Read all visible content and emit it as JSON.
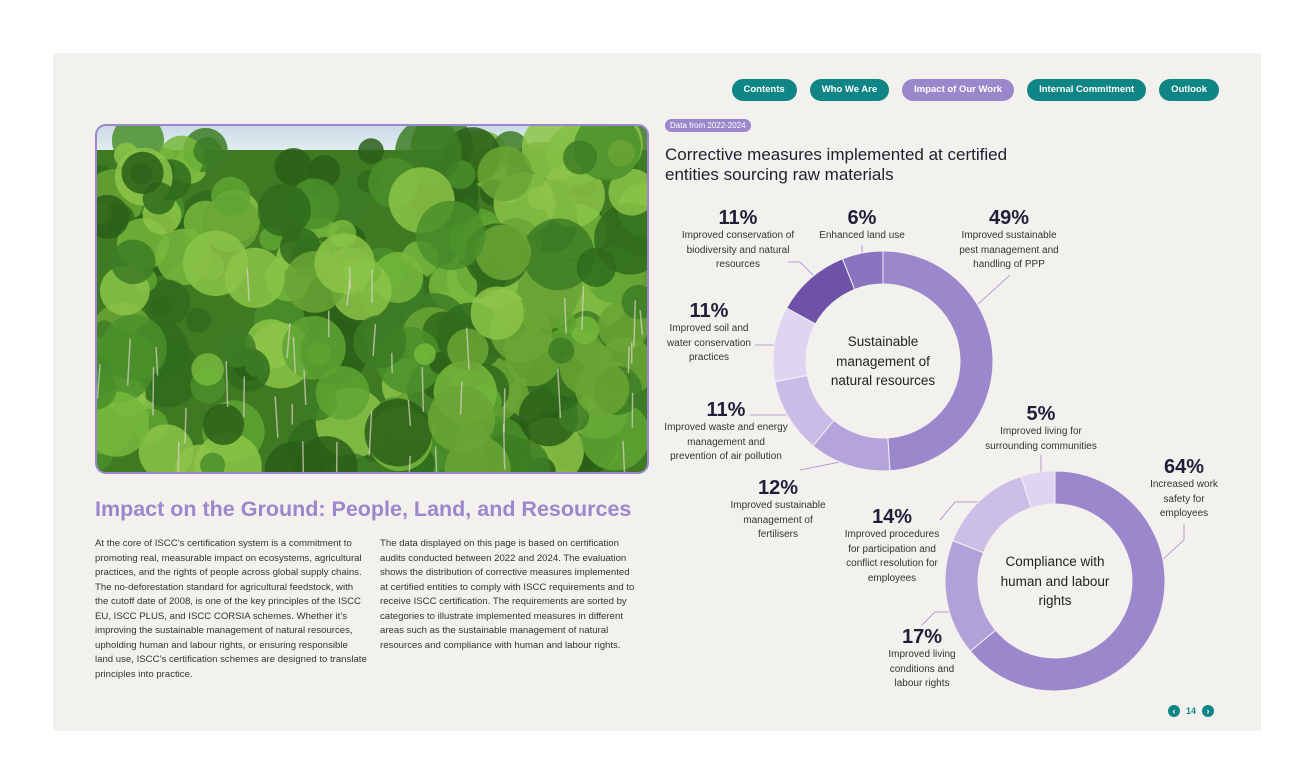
{
  "nav": [
    "Contents",
    "Who We Are",
    "Impact of Our Work",
    "Internal Commitment",
    "Outlook"
  ],
  "badge": "Data from 2022-2024",
  "title": "Corrective measures implemented at certified entities sourcing raw materials",
  "heading": "Impact on the Ground: People, Land, and Resources",
  "paragraphs": [
    "At the core of ISCC’s certification system is a commitment to promoting real, measurable impact on ecosystems, agricultural practices, and the rights of people across global supply chains. The no-deforestation standard for agricultural feedstock, with the cutoff date of 2008, is one of the key principles of the ISCC EU, ISCC PLUS, and ISCC CORSIA schemes. Whether it’s improving the sustainable management of natural resources, upholding human and labour rights, or ensuring responsible land use, ISCC’s certification schemes are designed to translate principles into practice.",
    "The data displayed on this page is based on certification audits conducted between 2022 and 2024. The evaluation shows the distribution of corrective measures implemented at certified entities to comply with ISCC requirements and to receive ISCC certification. The requirements are sorted by categories to illustrate implemented measures in different areas such as the sustainable management of natural resources and compliance with human and labour rights."
  ],
  "chart_data": [
    {
      "type": "pie",
      "center_label": "Sustainable management of natural resources",
      "categories": [
        "Improved sustainable pest management and handling of PPP",
        "Improved sustainable management of fertilisers",
        "Improved waste and energy management and prevention of air pollution",
        "Improved soil and water conservation practices",
        "Improved conservation of biodiversity and natural resources",
        "Enhanced land use"
      ],
      "values": [
        49,
        12,
        11,
        11,
        11,
        6
      ],
      "value_labels": [
        "49%",
        "12%",
        "11%",
        "11%",
        "11%",
        "6%"
      ],
      "colors": [
        "#9b87cc",
        "#b4a4db",
        "#c9bde8",
        "#ddd5f1",
        "#6e52a7",
        "#8a73c0"
      ]
    },
    {
      "type": "pie",
      "center_label": "Compliance with human and labour rights",
      "categories": [
        "Increased work safety for employees",
        "Improved living conditions and labour rights",
        "Improved procedures for participation and conflict resolution for employees",
        "Improved living for surrounding communities"
      ],
      "values": [
        64,
        17,
        14,
        5
      ],
      "value_labels": [
        "64%",
        "17%",
        "14%",
        "5%"
      ],
      "colors": [
        "#9b87cc",
        "#b1a1d9",
        "#cbbfe8",
        "#ddd5f1"
      ]
    }
  ],
  "page_number": 14
}
